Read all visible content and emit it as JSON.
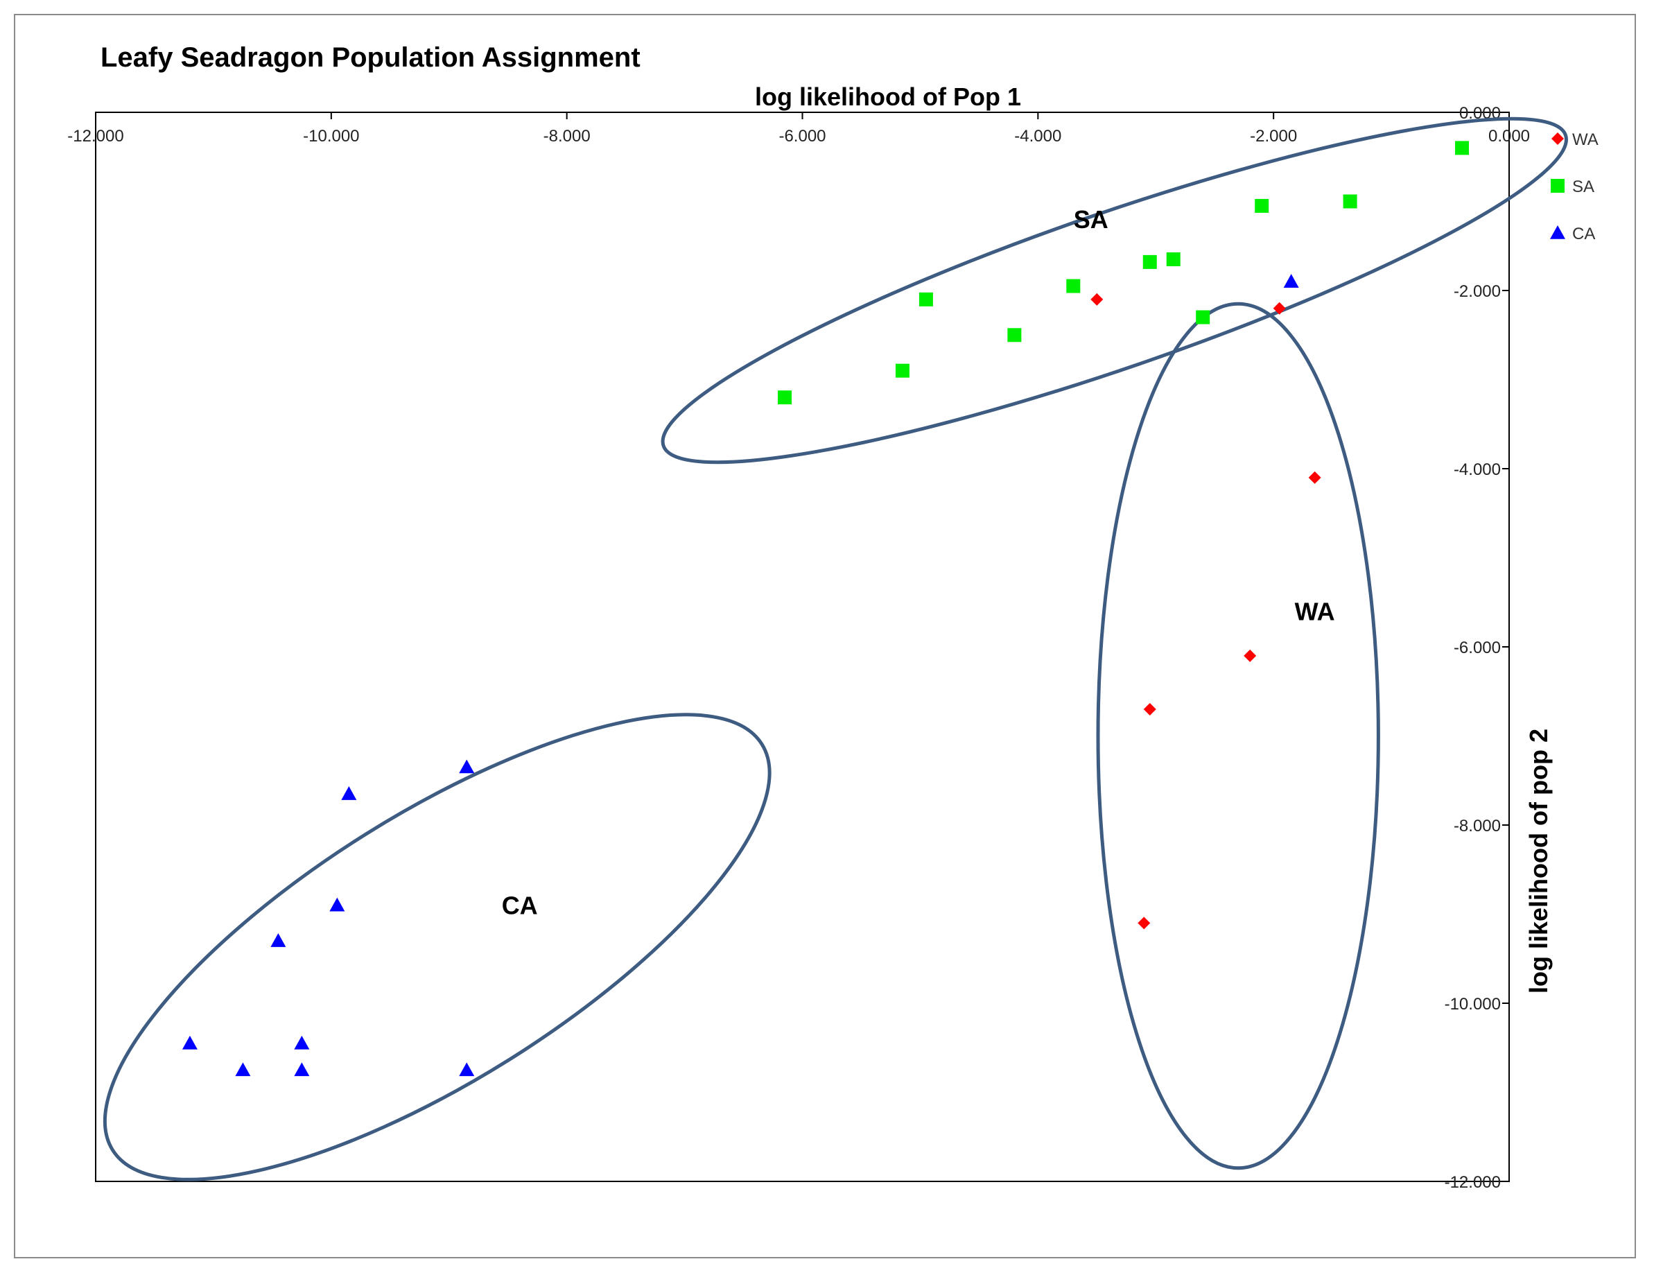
{
  "chart_data": {
    "type": "scatter",
    "title": "Leafy Seadragon Population Assignment",
    "xlabel": "log likelihood of Pop 1",
    "ylabel": "log likelihood of pop 2",
    "xlim": [
      -12,
      0
    ],
    "ylim": [
      -12,
      0
    ],
    "x_ticks": [
      "-12.000",
      "-10.000",
      "-8.000",
      "-6.000",
      "-4.000",
      "-2.000",
      "0.000"
    ],
    "y_ticks": [
      "0.000",
      "-2.000",
      "-4.000",
      "-6.000",
      "-8.000",
      "-10.000",
      "-12.000"
    ],
    "x_tick_values": [
      -12,
      -10,
      -8,
      -6,
      -4,
      -2,
      0
    ],
    "y_tick_values": [
      0,
      -2,
      -4,
      -6,
      -8,
      -10,
      -12
    ],
    "grid": false,
    "axis_position": "top-right",
    "legend": "right",
    "series": [
      {
        "name": "WA",
        "marker": "diamond",
        "color": "#ff0000",
        "points": [
          [
            -3.5,
            -2.1
          ],
          [
            -1.95,
            -2.2
          ],
          [
            -1.65,
            -4.1
          ],
          [
            -2.2,
            -6.1
          ],
          [
            -3.05,
            -6.7
          ],
          [
            -3.1,
            -9.1
          ]
        ]
      },
      {
        "name": "SA",
        "marker": "square",
        "color": "#00ee00",
        "points": [
          [
            -0.4,
            -0.4
          ],
          [
            -1.35,
            -1.0
          ],
          [
            -2.1,
            -1.05
          ],
          [
            -2.85,
            -1.65
          ],
          [
            -3.05,
            -1.68
          ],
          [
            -3.7,
            -1.95
          ],
          [
            -2.6,
            -2.3
          ],
          [
            -4.95,
            -2.1
          ],
          [
            -4.2,
            -2.5
          ],
          [
            -5.15,
            -2.9
          ],
          [
            -6.15,
            -3.2
          ]
        ]
      },
      {
        "name": "CA",
        "marker": "triangle",
        "color": "#0000ff",
        "points": [
          [
            -1.85,
            -1.9
          ],
          [
            -8.85,
            -7.35
          ],
          [
            -9.85,
            -7.65
          ],
          [
            -9.95,
            -8.9
          ],
          [
            -10.45,
            -9.3
          ],
          [
            -11.2,
            -10.45
          ],
          [
            -10.25,
            -10.45
          ],
          [
            -10.75,
            -10.75
          ],
          [
            -10.25,
            -10.75
          ],
          [
            -8.85,
            -10.75
          ]
        ]
      }
    ],
    "annotations": [
      {
        "text": "SA",
        "x": -3.55,
        "y": -1.3
      },
      {
        "text": "WA",
        "x": -1.65,
        "y": -5.7
      },
      {
        "text": "CA",
        "x": -8.4,
        "y": -9.0
      }
    ],
    "ellipses": [
      {
        "name": "SA",
        "cx": -3.35,
        "cy": -2.0,
        "rx": 4.05,
        "ry": 0.87,
        "rotation_deg": -19
      },
      {
        "name": "WA",
        "cx": -2.3,
        "cy": -7.0,
        "rx": 1.19,
        "ry": 4.85,
        "rotation_deg": 0
      },
      {
        "name": "CA",
        "cx": -9.1,
        "cy": -9.37,
        "rx": 3.25,
        "ry": 1.5,
        "rotation_deg": -32
      }
    ],
    "ellipse_color": "#3e5c82"
  }
}
